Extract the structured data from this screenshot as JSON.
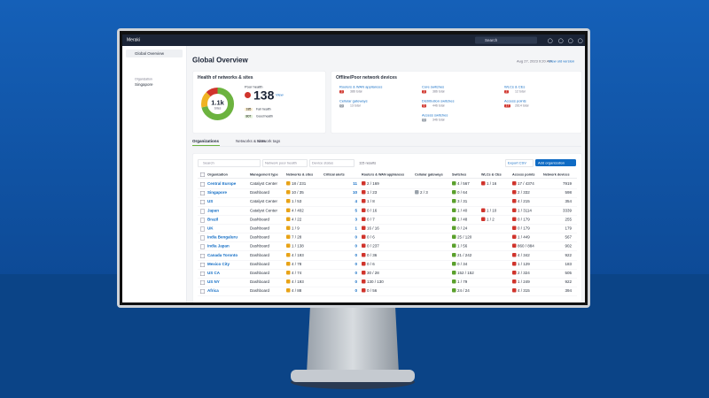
{
  "app": {
    "brand": "Meraki",
    "search": "Search"
  },
  "sidebar": {
    "nav": "Global Overview",
    "org_label": "Organization",
    "org": "Singapore"
  },
  "page": {
    "title": "Global Overview",
    "timestamp": "Aug 27, 2023 9:20 AM",
    "old_version": "View old version"
  },
  "health": {
    "title": "Health of networks & sites",
    "total": "1.1k",
    "total_label": "Sites",
    "poor_label": "Poor health",
    "poor": 138,
    "view": "View",
    "fair": 185,
    "fair_label": "Fair health",
    "good": 807,
    "good_label": "Good health"
  },
  "devices": {
    "title": "Offline/Poor network devices",
    "items": [
      {
        "name": "Routers & WAN appliances",
        "count": 3,
        "total": "386 total"
      },
      {
        "name": "Cellular gateways",
        "count": 0,
        "total": "13 total"
      },
      {
        "name": "Core switches",
        "count": 3,
        "total": "386 total"
      },
      {
        "name": "Distribution switches",
        "count": 6,
        "total": "446 total"
      },
      {
        "name": "Access switches",
        "count": 0,
        "total": "346 total"
      },
      {
        "name": "WLCs & CEs",
        "count": 2,
        "total": "12 total"
      },
      {
        "name": "Access points",
        "count": 17,
        "total": "2614 total"
      }
    ]
  },
  "tabs": [
    "Organizations",
    "Networks & sites",
    "Network tags"
  ],
  "filters": {
    "search": "Search",
    "network": "Network poor health",
    "device": "Device status",
    "results": "115 results",
    "export": "Export CSV",
    "add": "Add organization"
  },
  "table": {
    "columns": [
      "Organization",
      "Management type",
      "Networks & sites",
      "Critical alerts",
      "Routers & WAN appliances",
      "Cellular gateways",
      "Switches",
      "WLCs & CEs",
      "Access points",
      "Network devices"
    ],
    "rows": [
      [
        "Central Europe",
        "Catalyst Center",
        "18 / 231",
        11,
        "2 / 169",
        null,
        "4 / 567",
        "1 / 16",
        "17 / 4374",
        7919
      ],
      [
        "Singapore",
        "Dashboard",
        "10 / 35",
        10,
        "1 / 23",
        "2 / 3",
        "0 / 64",
        null,
        "2 / 332",
        598
      ],
      [
        "US",
        "Catalyst Center",
        "1 / 53",
        4,
        "1 / 8",
        null,
        "3 / 31",
        null,
        "4 / 215",
        354
      ],
      [
        "Japan",
        "Catalyst Center",
        "4 / 402",
        5,
        "0 / 16",
        null,
        "1 / 40",
        "1 / 10",
        "1 / 3114",
        3339
      ],
      [
        "Brazil",
        "Dashboard",
        "4 / 22",
        3,
        "0 / 7",
        null,
        "1 / 48",
        "1 / 2",
        "0 / 179",
        255
      ],
      [
        "UK",
        "Dashboard",
        "1 / 9",
        1,
        "16 / 16",
        null,
        "0 / 24",
        null,
        "0 / 179",
        179
      ],
      [
        "India Bengaluru",
        "Dashboard",
        "7 / 28",
        0,
        "0 / 6",
        null,
        "25 / 120",
        null,
        "1 / 449",
        567
      ],
      [
        "India Japan",
        "Dashboard",
        "1 / 138",
        0,
        "0 / 237",
        null,
        "1 / 56",
        null,
        "860 / 884",
        902
      ],
      [
        "Canada Toronto",
        "Dashboard",
        "4 / 193",
        0,
        "0 / 36",
        null,
        "21 / 242",
        null,
        "4 / 342",
        922
      ],
      [
        "Mexico City",
        "Dashboard",
        "4 / 78",
        0,
        "0 / 6",
        null,
        "0 / 34",
        null,
        "1 / 129",
        183
      ],
      [
        "US CA",
        "Dashboard",
        "4 / 74",
        0,
        "30 / 28",
        null,
        "152 / 152",
        null,
        "2 / 324",
        505
      ],
      [
        "US NY",
        "Dashboard",
        "4 / 193",
        0,
        "130 / 130",
        null,
        "1 / 79",
        null,
        "1 / 249",
        922
      ],
      [
        "Africa",
        "Dashboard",
        "4 / 88",
        0,
        "0 / 56",
        null,
        "24 / 24",
        null,
        "4 / 315",
        394
      ]
    ]
  }
}
